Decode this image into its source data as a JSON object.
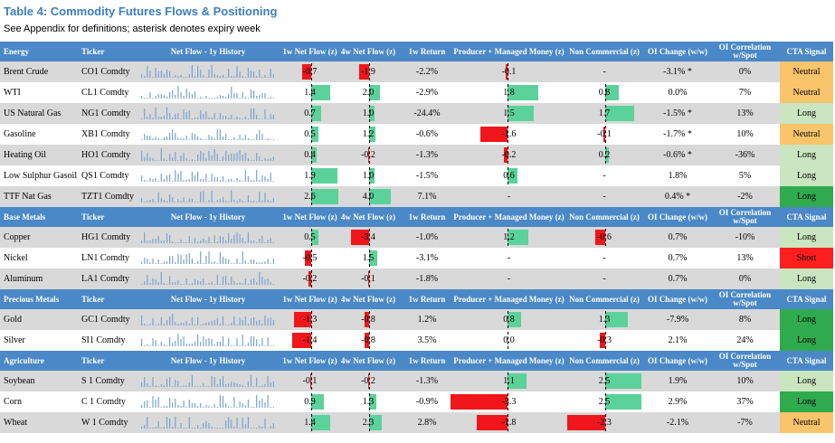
{
  "title": "Table 4: Commodity Futures Flows & Positioning",
  "subtitle": "See Appendix for definitions; asterisk denotes expiry week",
  "columns": {
    "ticker": "Ticker",
    "history": "Net Flow - 1y History",
    "flow1w": "1w Net Flow (z)",
    "flow4w": "4w Net Flow (z)",
    "ret1w": "1w Return",
    "prod": "Producer + Managed Money (z)",
    "noncom": "Non Commercial (z)",
    "oi": "OI Change (w/w)",
    "corr": "OI Correlation w/Spot",
    "cta": "CTA Signal"
  },
  "colors": {
    "header": "#4a88c7",
    "positive_bar": "#5bd29a",
    "negative_bar": "#f0161b",
    "neutral": "#fac46a",
    "long_light": "#c9e6c0",
    "long_dark": "#2fab4e",
    "short": "#ff1f1f"
  },
  "sections": [
    {
      "name": "Energy",
      "rows": [
        {
          "name": "Brent Crude",
          "ticker": "CO1 Comdty",
          "flow1w": "-0.7",
          "flow4w": "-1.9",
          "ret1w": "-2.2%",
          "prod": "-0.1",
          "noncom": "-",
          "oi": "-3.1% *",
          "corr": "0%",
          "cta": "Neutral",
          "cta_color": "#fac46a"
        },
        {
          "name": "WTI",
          "ticker": "CL1 Comdty",
          "flow1w": "1.4",
          "flow4w": "2.0",
          "ret1w": "-2.9%",
          "prod": "1.8",
          "noncom": "0.8",
          "oi": "0.0%",
          "corr": "7%",
          "cta": "Neutral",
          "cta_color": "#fac46a"
        },
        {
          "name": "US Natural Gas",
          "ticker": "NG1 Comdty",
          "flow1w": "0.7",
          "flow4w": "1.0",
          "ret1w": "-24.4%",
          "prod": "1.5",
          "noncom": "1.7",
          "oi": "-1.5% *",
          "corr": "13%",
          "cta": "Long",
          "cta_color": "#c9e6c0"
        },
        {
          "name": "Gasoline",
          "ticker": "XB1 Comdty",
          "flow1w": "0.5",
          "flow4w": "1.2",
          "ret1w": "-0.6%",
          "prod": "-1.6",
          "noncom": "-0.1",
          "oi": "-1.7% *",
          "corr": "10%",
          "cta": "Neutral",
          "cta_color": "#fac46a"
        },
        {
          "name": "Heating Oil",
          "ticker": "HO1 Comdty",
          "flow1w": "0.4",
          "flow4w": "-0.2",
          "ret1w": "-1.3%",
          "prod": "-0.2",
          "noncom": "0.2",
          "oi": "-0.6% *",
          "corr": "-36%",
          "cta": "Long",
          "cta_color": "#c9e6c0"
        },
        {
          "name": "Low Sulphur Gasoil",
          "ticker": "QS1 Comdty",
          "flow1w": "1.9",
          "flow4w": "1.0",
          "ret1w": "-1.5%",
          "prod": "0.6",
          "noncom": "-",
          "oi": "1.8%",
          "corr": "5%",
          "cta": "Long",
          "cta_color": "#c9e6c0"
        },
        {
          "name": "TTF Nat Gas",
          "ticker": "TZT1 Comdty",
          "flow1w": "2.6",
          "flow4w": "4.0",
          "ret1w": "7.1%",
          "prod": "-",
          "noncom": "-",
          "oi": "0.4% *",
          "corr": "-2%",
          "cta": "Long",
          "cta_color": "#2fab4e"
        }
      ]
    },
    {
      "name": "Base Metals",
      "rows": [
        {
          "name": "Copper",
          "ticker": "HG1 Comdty",
          "flow1w": "0.5",
          "flow4w": "-3.4",
          "ret1w": "-1.0%",
          "prod": "1.2",
          "noncom": "-0.6",
          "oi": "0.7%",
          "corr": "-10%",
          "cta": "Long",
          "cta_color": "#c9e6c0"
        },
        {
          "name": "Nickel",
          "ticker": "LN1 Comdty",
          "flow1w": "-0.5",
          "flow4w": "1.5",
          "ret1w": "-3.1%",
          "prod": "-",
          "noncom": "-",
          "oi": "0.7%",
          "corr": "13%",
          "cta": "Short",
          "cta_color": "#ff1f1f"
        },
        {
          "name": "Aluminum",
          "ticker": "LA1 Comdty",
          "flow1w": "-0.2",
          "flow4w": "-0.1",
          "ret1w": "-1.8%",
          "prod": "-",
          "noncom": "-",
          "oi": "0.7%",
          "corr": "0%",
          "cta": "Long",
          "cta_color": "#c9e6c0"
        }
      ]
    },
    {
      "name": "Precious Metals",
      "rows": [
        {
          "name": "Gold",
          "ticker": "GC1 Comdty",
          "flow1w": "-1.3",
          "flow4w": "-0.8",
          "ret1w": "1.2%",
          "prod": "0.8",
          "noncom": "1.3",
          "oi": "-7.9%",
          "corr": "8%",
          "cta": "Long",
          "cta_color": "#2fab4e"
        },
        {
          "name": "Silver",
          "ticker": "SI1 Comdty",
          "flow1w": "-1.4",
          "flow4w": "-0.8",
          "ret1w": "3.5%",
          "prod": "0.0",
          "noncom": "-0.3",
          "oi": "2.1%",
          "corr": "24%",
          "cta": "Long",
          "cta_color": "#2fab4e"
        }
      ]
    },
    {
      "name": "Agriculture",
      "rows": [
        {
          "name": "Soybean",
          "ticker": "S 1 Comdty",
          "flow1w": "-0.1",
          "flow4w": "-0.2",
          "ret1w": "-1.3%",
          "prod": "1.1",
          "noncom": "2.5",
          "oi": "1.9%",
          "corr": "10%",
          "cta": "Long",
          "cta_color": "#c9e6c0"
        },
        {
          "name": "Corn",
          "ticker": "C 1 Comdty",
          "flow1w": "0.9",
          "flow4w": "1.3",
          "ret1w": "-0.9%",
          "prod": "-3.3",
          "noncom": "2.5",
          "oi": "2.9%",
          "corr": "37%",
          "cta": "Long",
          "cta_color": "#2fab4e"
        },
        {
          "name": "Wheat",
          "ticker": "W 1 Comdty",
          "flow1w": "1.4",
          "flow4w": "2.3",
          "ret1w": "2.8%",
          "prod": "-1.8",
          "noncom": "-2.3",
          "oi": "-2.1%",
          "corr": "-7%",
          "cta": "Neutral",
          "cta_color": "#fac46a"
        }
      ]
    }
  ]
}
